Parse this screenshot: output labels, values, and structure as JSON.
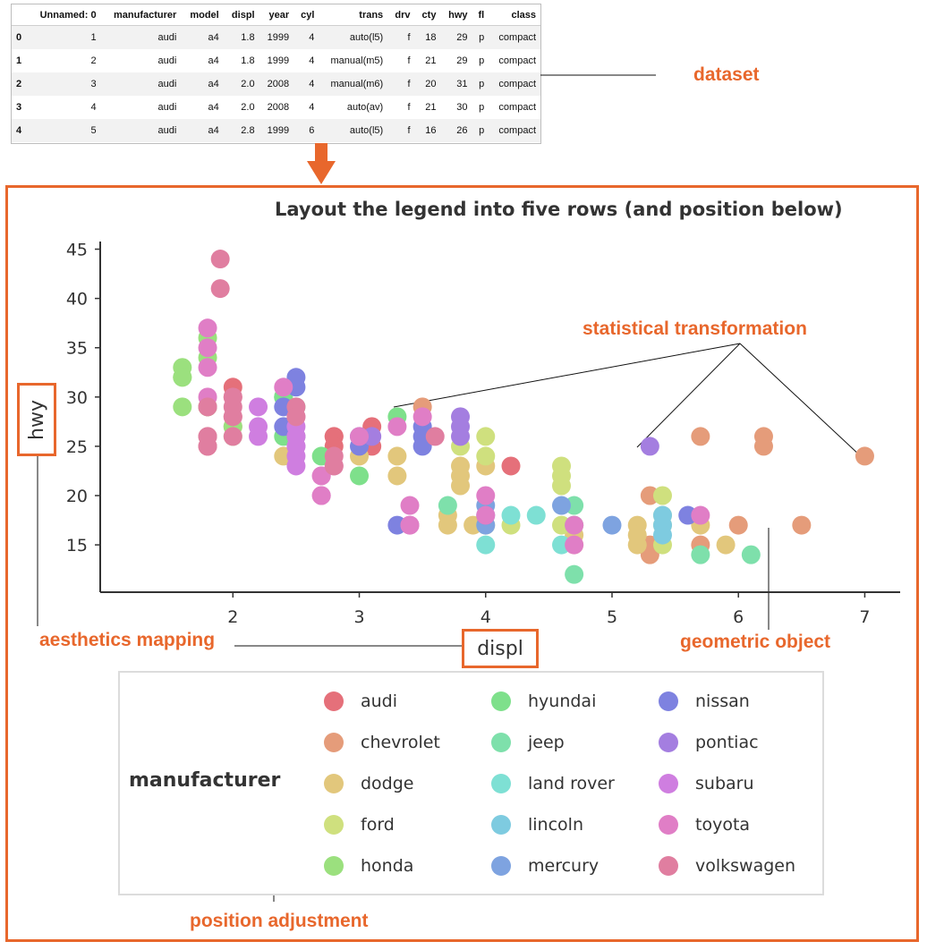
{
  "dataset_table": {
    "columns": [
      "",
      "Unnamed: 0",
      "manufacturer",
      "model",
      "displ",
      "year",
      "cyl",
      "trans",
      "drv",
      "cty",
      "hwy",
      "fl",
      "class"
    ],
    "rows": [
      [
        "0",
        "1",
        "audi",
        "a4",
        "1.8",
        "1999",
        "4",
        "auto(l5)",
        "f",
        "18",
        "29",
        "p",
        "compact"
      ],
      [
        "1",
        "2",
        "audi",
        "a4",
        "1.8",
        "1999",
        "4",
        "manual(m5)",
        "f",
        "21",
        "29",
        "p",
        "compact"
      ],
      [
        "2",
        "3",
        "audi",
        "a4",
        "2.0",
        "2008",
        "4",
        "manual(m6)",
        "f",
        "20",
        "31",
        "p",
        "compact"
      ],
      [
        "3",
        "4",
        "audi",
        "a4",
        "2.0",
        "2008",
        "4",
        "auto(av)",
        "f",
        "21",
        "30",
        "p",
        "compact"
      ],
      [
        "4",
        "5",
        "audi",
        "a4",
        "2.8",
        "1999",
        "6",
        "auto(l5)",
        "f",
        "16",
        "26",
        "p",
        "compact"
      ]
    ]
  },
  "annotations": {
    "dataset": "dataset",
    "statistical_transformation": "statistical transformation",
    "aesthetics_mapping": "aesthetics mapping",
    "geometric_object": "geometric object",
    "position_adjustment": "position adjustment"
  },
  "colors": {
    "accent": "#e8672c"
  },
  "chart_data": {
    "type": "scatter",
    "title": "Layout the legend into five rows (and position below)",
    "xlabel": "displ",
    "ylabel": "hwy",
    "xticks": [
      2,
      3,
      4,
      5,
      6,
      7
    ],
    "yticks": [
      15,
      20,
      25,
      30,
      35,
      40,
      45
    ],
    "xlim": [
      0.95,
      7.28
    ],
    "ylim": [
      10.2,
      46.5
    ],
    "legend": {
      "title": "manufacturer",
      "placement": "bottom",
      "rows": 5
    },
    "series": [
      {
        "name": "audi",
        "color": "#e5707a",
        "points": [
          [
            1.8,
            29
          ],
          [
            1.8,
            29
          ],
          [
            2,
            31
          ],
          [
            2,
            30
          ],
          [
            2.8,
            26
          ],
          [
            2.8,
            26
          ],
          [
            3.1,
            27
          ],
          [
            1.8,
            26
          ],
          [
            1.8,
            25
          ],
          [
            2,
            28
          ],
          [
            2,
            27
          ],
          [
            2.8,
            25
          ],
          [
            3.1,
            25
          ],
          [
            4.2,
            23
          ]
        ]
      },
      {
        "name": "chevrolet",
        "color": "#e59c7a",
        "points": [
          [
            5.7,
            26
          ],
          [
            6,
            17
          ],
          [
            6.2,
            26
          ],
          [
            6.2,
            25
          ],
          [
            7,
            24
          ],
          [
            5.3,
            20
          ],
          [
            5.3,
            15
          ],
          [
            5.3,
            14
          ],
          [
            5.7,
            15
          ],
          [
            6.5,
            17
          ],
          [
            3.5,
            29
          ]
        ]
      },
      {
        "name": "dodge",
        "color": "#e2c77c",
        "points": [
          [
            2.4,
            24
          ],
          [
            3,
            24
          ],
          [
            3.3,
            22
          ],
          [
            3.3,
            24
          ],
          [
            3.8,
            22
          ],
          [
            3.8,
            21
          ],
          [
            3.8,
            23
          ],
          [
            4,
            23
          ],
          [
            3.7,
            17
          ],
          [
            3.9,
            17
          ],
          [
            4.7,
            17
          ],
          [
            4.7,
            15
          ],
          [
            5.2,
            17
          ],
          [
            5.2,
            15
          ],
          [
            5.7,
            17
          ],
          [
            5.9,
            15
          ],
          [
            3.7,
            18
          ],
          [
            5.2,
            16
          ],
          [
            4.7,
            16
          ]
        ]
      },
      {
        "name": "ford",
        "color": "#cfe07e",
        "points": [
          [
            4,
            26
          ],
          [
            4,
            24
          ],
          [
            3.8,
            25
          ],
          [
            4.6,
            23
          ],
          [
            4.6,
            22
          ],
          [
            4.6,
            21
          ],
          [
            5.4,
            20
          ],
          [
            5.4,
            15
          ],
          [
            4.2,
            17
          ],
          [
            5.4,
            17
          ],
          [
            4.6,
            17
          ],
          [
            5.4,
            18
          ],
          [
            4,
            17
          ]
        ]
      },
      {
        "name": "honda",
        "color": "#9be07e",
        "points": [
          [
            1.6,
            33
          ],
          [
            1.6,
            32
          ],
          [
            1.6,
            29
          ],
          [
            1.8,
            34
          ],
          [
            1.8,
            36
          ],
          [
            1.8,
            29
          ],
          [
            2,
            27
          ],
          [
            2,
            26
          ],
          [
            1.6,
            32
          ]
        ]
      },
      {
        "name": "hyundai",
        "color": "#7ee08b",
        "points": [
          [
            2.4,
            26
          ],
          [
            2.4,
            30
          ],
          [
            2.5,
            26
          ],
          [
            2.5,
            29
          ],
          [
            2.7,
            24
          ],
          [
            3.3,
            28
          ],
          [
            3,
            22
          ],
          [
            2.4,
            30
          ]
        ]
      },
      {
        "name": "jeep",
        "color": "#7ee0ab",
        "points": [
          [
            3.7,
            19
          ],
          [
            4.7,
            19
          ],
          [
            4.7,
            12
          ],
          [
            5.7,
            14
          ],
          [
            6.1,
            14
          ],
          [
            4.7,
            17
          ]
        ]
      },
      {
        "name": "land rover",
        "color": "#7ee0d4",
        "points": [
          [
            4,
            15
          ],
          [
            4.2,
            18
          ],
          [
            4.4,
            18
          ],
          [
            4.6,
            15
          ]
        ]
      },
      {
        "name": "lincoln",
        "color": "#7ecbe0",
        "points": [
          [
            5.4,
            17
          ],
          [
            5.4,
            16
          ],
          [
            5.4,
            18
          ]
        ]
      },
      {
        "name": "mercury",
        "color": "#7ea3e0",
        "points": [
          [
            4,
            19
          ],
          [
            4,
            17
          ],
          [
            4.6,
            19
          ],
          [
            5,
            17
          ]
        ]
      },
      {
        "name": "nissan",
        "color": "#7e82e0",
        "points": [
          [
            2.4,
            27
          ],
          [
            3,
            26
          ],
          [
            3.5,
            25
          ],
          [
            2.5,
            31
          ],
          [
            2.5,
            32
          ],
          [
            3.5,
            27
          ],
          [
            3.5,
            26
          ],
          [
            3.3,
            17
          ],
          [
            4,
            18
          ],
          [
            5.6,
            18
          ],
          [
            3,
            25
          ],
          [
            2.4,
            29
          ]
        ]
      },
      {
        "name": "pontiac",
        "color": "#a47ee0",
        "points": [
          [
            3.1,
            26
          ],
          [
            3.8,
            27
          ],
          [
            3.8,
            26
          ],
          [
            3.8,
            28
          ],
          [
            5.3,
            25
          ]
        ]
      },
      {
        "name": "subaru",
        "color": "#cf7ee0",
        "points": [
          [
            2.2,
            26
          ],
          [
            2.2,
            27
          ],
          [
            2.5,
            24
          ],
          [
            2.5,
            25
          ],
          [
            2.5,
            26
          ],
          [
            2.5,
            27
          ],
          [
            2.5,
            23
          ],
          [
            2.2,
            29
          ],
          [
            2.5,
            25
          ],
          [
            2.5,
            26
          ]
        ]
      },
      {
        "name": "toyota",
        "color": "#e07ec6",
        "points": [
          [
            2.7,
            20
          ],
          [
            2.7,
            22
          ],
          [
            3.4,
            17
          ],
          [
            3.4,
            19
          ],
          [
            4,
            20
          ],
          [
            4.7,
            17
          ],
          [
            4.7,
            15
          ],
          [
            5.7,
            18
          ],
          [
            2.7,
            22
          ],
          [
            2.7,
            20
          ],
          [
            3.4,
            17
          ],
          [
            4,
            18
          ],
          [
            3.5,
            28
          ],
          [
            3.3,
            27
          ],
          [
            2.4,
            31
          ],
          [
            1.8,
            37
          ],
          [
            1.8,
            35
          ],
          [
            1.8,
            33
          ],
          [
            1.8,
            30
          ],
          [
            2.5,
            28
          ],
          [
            2.8,
            23
          ],
          [
            3,
            26
          ]
        ]
      },
      {
        "name": "volkswagen",
        "color": "#e07ea0",
        "points": [
          [
            1.9,
            44
          ],
          [
            1.9,
            41
          ],
          [
            1.8,
            29
          ],
          [
            1.8,
            26
          ],
          [
            2,
            28
          ],
          [
            2,
            29
          ],
          [
            2,
            26
          ],
          [
            2.5,
            29
          ],
          [
            2.5,
            28
          ],
          [
            2.8,
            23
          ],
          [
            2.8,
            24
          ],
          [
            3.6,
            26
          ],
          [
            2,
            30
          ],
          [
            1.8,
            25
          ]
        ]
      }
    ]
  }
}
